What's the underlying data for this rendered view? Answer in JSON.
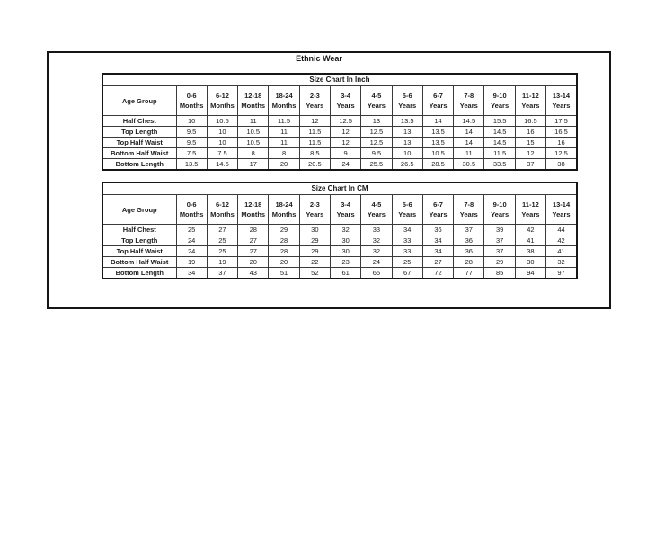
{
  "title": "Ethnic Wear",
  "colors": {
    "text": "#1c1c1c",
    "border_outer": "#161616",
    "border_inner": "#3a3a3a",
    "background": "#ffffff"
  },
  "tables": [
    {
      "title": "Size Chart In Inch",
      "corner": "Age Group",
      "columns": [
        "0-6 Months",
        "6-12 Months",
        "12-18 Months",
        "18-24 Months",
        "2-3 Years",
        "3-4 Years",
        "4-5 Years",
        "5-6 Years",
        "6-7 Years",
        "7-8 Years",
        "9-10 Years",
        "11-12 Years",
        "13-14 Years"
      ],
      "rows": [
        {
          "label": "Half Chest",
          "values": [
            "10",
            "10.5",
            "11",
            "11.5",
            "12",
            "12.5",
            "13",
            "13.5",
            "14",
            "14.5",
            "15.5",
            "16.5",
            "17.5"
          ]
        },
        {
          "label": "Top Length",
          "values": [
            "9.5",
            "10",
            "10.5",
            "11",
            "11.5",
            "12",
            "12.5",
            "13",
            "13.5",
            "14",
            "14.5",
            "16",
            "16.5"
          ]
        },
        {
          "label": "Top Half Waist",
          "values": [
            "9.5",
            "10",
            "10.5",
            "11",
            "11.5",
            "12",
            "12.5",
            "13",
            "13.5",
            "14",
            "14.5",
            "15",
            "16"
          ]
        },
        {
          "label": "Bottom Half Waist",
          "values": [
            "7.5",
            "7.5",
            "8",
            "8",
            "8.5",
            "9",
            "9.5",
            "10",
            "10.5",
            "11",
            "11.5",
            "12",
            "12.5"
          ]
        },
        {
          "label": "Bottom Length",
          "values": [
            "13.5",
            "14.5",
            "17",
            "20",
            "20.5",
            "24",
            "25.5",
            "26.5",
            "28.5",
            "30.5",
            "33.5",
            "37",
            "38"
          ]
        }
      ]
    },
    {
      "title": "Size Chart In CM",
      "corner": "Age Group",
      "columns": [
        "0-6 Months",
        "6-12 Months",
        "12-18 Months",
        "18-24 Months",
        "2-3 Years",
        "3-4 Years",
        "4-5 Years",
        "5-6 Years",
        "6-7 Years",
        "7-8 Years",
        "9-10 Years",
        "11-12 Years",
        "13-14 Years"
      ],
      "rows": [
        {
          "label": "Half Chest",
          "values": [
            "25",
            "27",
            "28",
            "29",
            "30",
            "32",
            "33",
            "34",
            "36",
            "37",
            "39",
            "42",
            "44"
          ]
        },
        {
          "label": "Top Length",
          "values": [
            "24",
            "25",
            "27",
            "28",
            "29",
            "30",
            "32",
            "33",
            "34",
            "36",
            "37",
            "41",
            "42"
          ]
        },
        {
          "label": "Top Half Waist",
          "values": [
            "24",
            "25",
            "27",
            "28",
            "29",
            "30",
            "32",
            "33",
            "34",
            "36",
            "37",
            "38",
            "41"
          ]
        },
        {
          "label": "Bottom Half Waist",
          "values": [
            "19",
            "19",
            "20",
            "20",
            "22",
            "23",
            "24",
            "25",
            "27",
            "28",
            "29",
            "30",
            "32"
          ]
        },
        {
          "label": "Bottom Length",
          "values": [
            "34",
            "37",
            "43",
            "51",
            "52",
            "61",
            "65",
            "67",
            "72",
            "77",
            "85",
            "94",
            "97"
          ]
        }
      ]
    }
  ]
}
